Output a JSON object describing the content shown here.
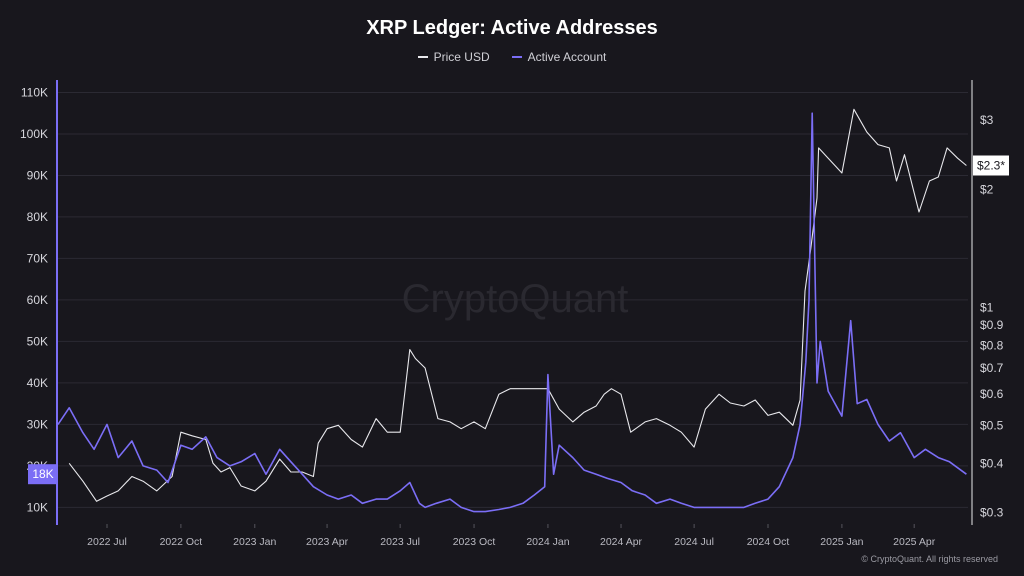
{
  "chart_data": {
    "type": "line",
    "title": "XRP Ledger: Active Addresses",
    "watermark": "CryptoQuant",
    "copyright": "© CryptoQuant. All rights reserved",
    "legend_placement": "top-center",
    "grid": true,
    "colors": {
      "price": "#e8e8ec",
      "active": "#7b6ef6",
      "background": "#18171d"
    },
    "left_axis": {
      "ticks": [
        "10K",
        "20K",
        "30K",
        "40K",
        "50K",
        "60K",
        "70K",
        "80K",
        "90K",
        "100K",
        "110K"
      ],
      "tick_values": [
        10000,
        20000,
        30000,
        40000,
        50000,
        60000,
        70000,
        80000,
        90000,
        100000,
        110000
      ],
      "ylim": [
        6000,
        113000
      ],
      "current_label": "18K",
      "current_value": 18000
    },
    "right_axis": {
      "scale": "log",
      "ticks": [
        "$0.3",
        "$0.4",
        "$0.5",
        "$0.6",
        "$0.7",
        "$0.8",
        "$0.9",
        "$1",
        "$2",
        "$3"
      ],
      "tick_values": [
        0.3,
        0.4,
        0.5,
        0.6,
        0.7,
        0.8,
        0.9,
        1,
        2,
        3
      ],
      "ylim": [
        0.28,
        3.8
      ],
      "current_label": "$2.3*",
      "current_value": 2.3
    },
    "x_axis": {
      "ticks": [
        "2022 Jul",
        "2022 Oct",
        "2023 Jan",
        "2023 Apr",
        "2023 Jul",
        "2023 Oct",
        "2024 Jan",
        "2024 Apr",
        "2024 Jul",
        "2024 Oct",
        "2025 Jan",
        "2025 Apr"
      ],
      "tick_dates": [
        "2022-07-01",
        "2022-10-01",
        "2023-01-01",
        "2023-04-01",
        "2023-07-01",
        "2023-10-01",
        "2024-01-01",
        "2024-04-01",
        "2024-07-01",
        "2024-10-01",
        "2025-01-01",
        "2025-04-01"
      ],
      "xlim": [
        "2022-05-01",
        "2025-06-07"
      ]
    },
    "series": [
      {
        "name": "Price USD",
        "axis": "right",
        "x": [
          "2022-05-15",
          "2022-06-01",
          "2022-06-18",
          "2022-07-01",
          "2022-07-15",
          "2022-08-01",
          "2022-08-15",
          "2022-09-01",
          "2022-09-20",
          "2022-10-01",
          "2022-10-15",
          "2022-11-01",
          "2022-11-10",
          "2022-11-20",
          "2022-12-01",
          "2022-12-15",
          "2023-01-01",
          "2023-01-15",
          "2023-02-01",
          "2023-02-15",
          "2023-03-01",
          "2023-03-15",
          "2023-03-21",
          "2023-04-01",
          "2023-04-15",
          "2023-05-01",
          "2023-05-15",
          "2023-06-01",
          "2023-06-15",
          "2023-07-01",
          "2023-07-13",
          "2023-07-20",
          "2023-08-01",
          "2023-08-17",
          "2023-09-01",
          "2023-09-15",
          "2023-10-01",
          "2023-10-15",
          "2023-11-01",
          "2023-11-15",
          "2023-12-01",
          "2023-12-15",
          "2024-01-01",
          "2024-01-15",
          "2024-02-01",
          "2024-02-15",
          "2024-03-01",
          "2024-03-11",
          "2024-03-20",
          "2024-04-01",
          "2024-04-13",
          "2024-05-01",
          "2024-05-15",
          "2024-06-01",
          "2024-06-15",
          "2024-07-01",
          "2024-07-15",
          "2024-08-01",
          "2024-08-15",
          "2024-09-01",
          "2024-09-15",
          "2024-10-01",
          "2024-10-15",
          "2024-11-01",
          "2024-11-10",
          "2024-11-16",
          "2024-11-23",
          "2024-12-01",
          "2024-12-03",
          "2024-12-15",
          "2025-01-01",
          "2025-01-16",
          "2025-02-01",
          "2025-02-15",
          "2025-03-01",
          "2025-03-10",
          "2025-03-20",
          "2025-04-07",
          "2025-04-20",
          "2025-05-01",
          "2025-05-12",
          "2025-05-25",
          "2025-06-05"
        ],
        "values": [
          0.4,
          0.36,
          0.32,
          0.33,
          0.34,
          0.37,
          0.36,
          0.34,
          0.37,
          0.48,
          0.47,
          0.46,
          0.4,
          0.38,
          0.39,
          0.35,
          0.34,
          0.36,
          0.41,
          0.38,
          0.38,
          0.37,
          0.45,
          0.49,
          0.5,
          0.46,
          0.44,
          0.52,
          0.48,
          0.48,
          0.78,
          0.74,
          0.7,
          0.52,
          0.51,
          0.49,
          0.51,
          0.49,
          0.6,
          0.62,
          0.62,
          0.62,
          0.62,
          0.55,
          0.51,
          0.54,
          0.56,
          0.6,
          0.62,
          0.6,
          0.48,
          0.51,
          0.52,
          0.5,
          0.48,
          0.44,
          0.55,
          0.6,
          0.57,
          0.56,
          0.58,
          0.53,
          0.54,
          0.5,
          0.58,
          1.1,
          1.4,
          1.9,
          2.55,
          2.4,
          2.2,
          3.2,
          2.8,
          2.6,
          2.55,
          2.1,
          2.45,
          1.75,
          2.1,
          2.15,
          2.55,
          2.4,
          2.3
        ]
      },
      {
        "name": "Active Account",
        "axis": "left",
        "x": [
          "2022-05-01",
          "2022-05-15",
          "2022-06-01",
          "2022-06-15",
          "2022-07-01",
          "2022-07-15",
          "2022-08-01",
          "2022-08-15",
          "2022-09-01",
          "2022-09-15",
          "2022-10-01",
          "2022-10-15",
          "2022-11-01",
          "2022-11-15",
          "2022-12-01",
          "2022-12-15",
          "2023-01-01",
          "2023-01-15",
          "2023-02-01",
          "2023-02-15",
          "2023-03-01",
          "2023-03-15",
          "2023-04-01",
          "2023-04-15",
          "2023-05-01",
          "2023-05-15",
          "2023-06-01",
          "2023-06-15",
          "2023-07-01",
          "2023-07-13",
          "2023-07-25",
          "2023-08-01",
          "2023-08-15",
          "2023-09-01",
          "2023-09-15",
          "2023-10-01",
          "2023-10-15",
          "2023-11-01",
          "2023-11-15",
          "2023-12-01",
          "2023-12-15",
          "2023-12-28",
          "2024-01-01",
          "2024-01-08",
          "2024-01-15",
          "2024-02-01",
          "2024-02-15",
          "2024-03-01",
          "2024-03-15",
          "2024-04-01",
          "2024-04-15",
          "2024-05-01",
          "2024-05-15",
          "2024-06-01",
          "2024-06-15",
          "2024-07-01",
          "2024-07-15",
          "2024-08-01",
          "2024-08-15",
          "2024-09-01",
          "2024-09-15",
          "2024-10-01",
          "2024-10-15",
          "2024-11-01",
          "2024-11-10",
          "2024-11-17",
          "2024-11-21",
          "2024-11-25",
          "2024-12-01",
          "2024-12-05",
          "2024-12-15",
          "2025-01-01",
          "2025-01-12",
          "2025-01-20",
          "2025-02-01",
          "2025-02-15",
          "2025-03-01",
          "2025-03-15",
          "2025-04-01",
          "2025-04-15",
          "2025-05-01",
          "2025-05-15",
          "2025-06-05"
        ],
        "values": [
          30000,
          34000,
          28000,
          24000,
          30000,
          22000,
          26000,
          20000,
          19000,
          16000,
          25000,
          24000,
          27000,
          22000,
          20000,
          21000,
          23000,
          18000,
          24000,
          21000,
          18000,
          15000,
          13000,
          12000,
          13000,
          11000,
          12000,
          12000,
          14000,
          16000,
          11000,
          10000,
          11000,
          12000,
          10000,
          9000,
          9000,
          9500,
          10000,
          11000,
          13000,
          15000,
          42000,
          18000,
          25000,
          22000,
          19000,
          18000,
          17000,
          16000,
          14000,
          13000,
          11000,
          12000,
          11000,
          10000,
          10000,
          10000,
          10000,
          10000,
          11000,
          12000,
          15000,
          22000,
          30000,
          45000,
          60000,
          105000,
          40000,
          50000,
          38000,
          32000,
          55000,
          35000,
          36000,
          30000,
          26000,
          28000,
          22000,
          24000,
          22000,
          21000,
          18000
        ]
      }
    ]
  }
}
